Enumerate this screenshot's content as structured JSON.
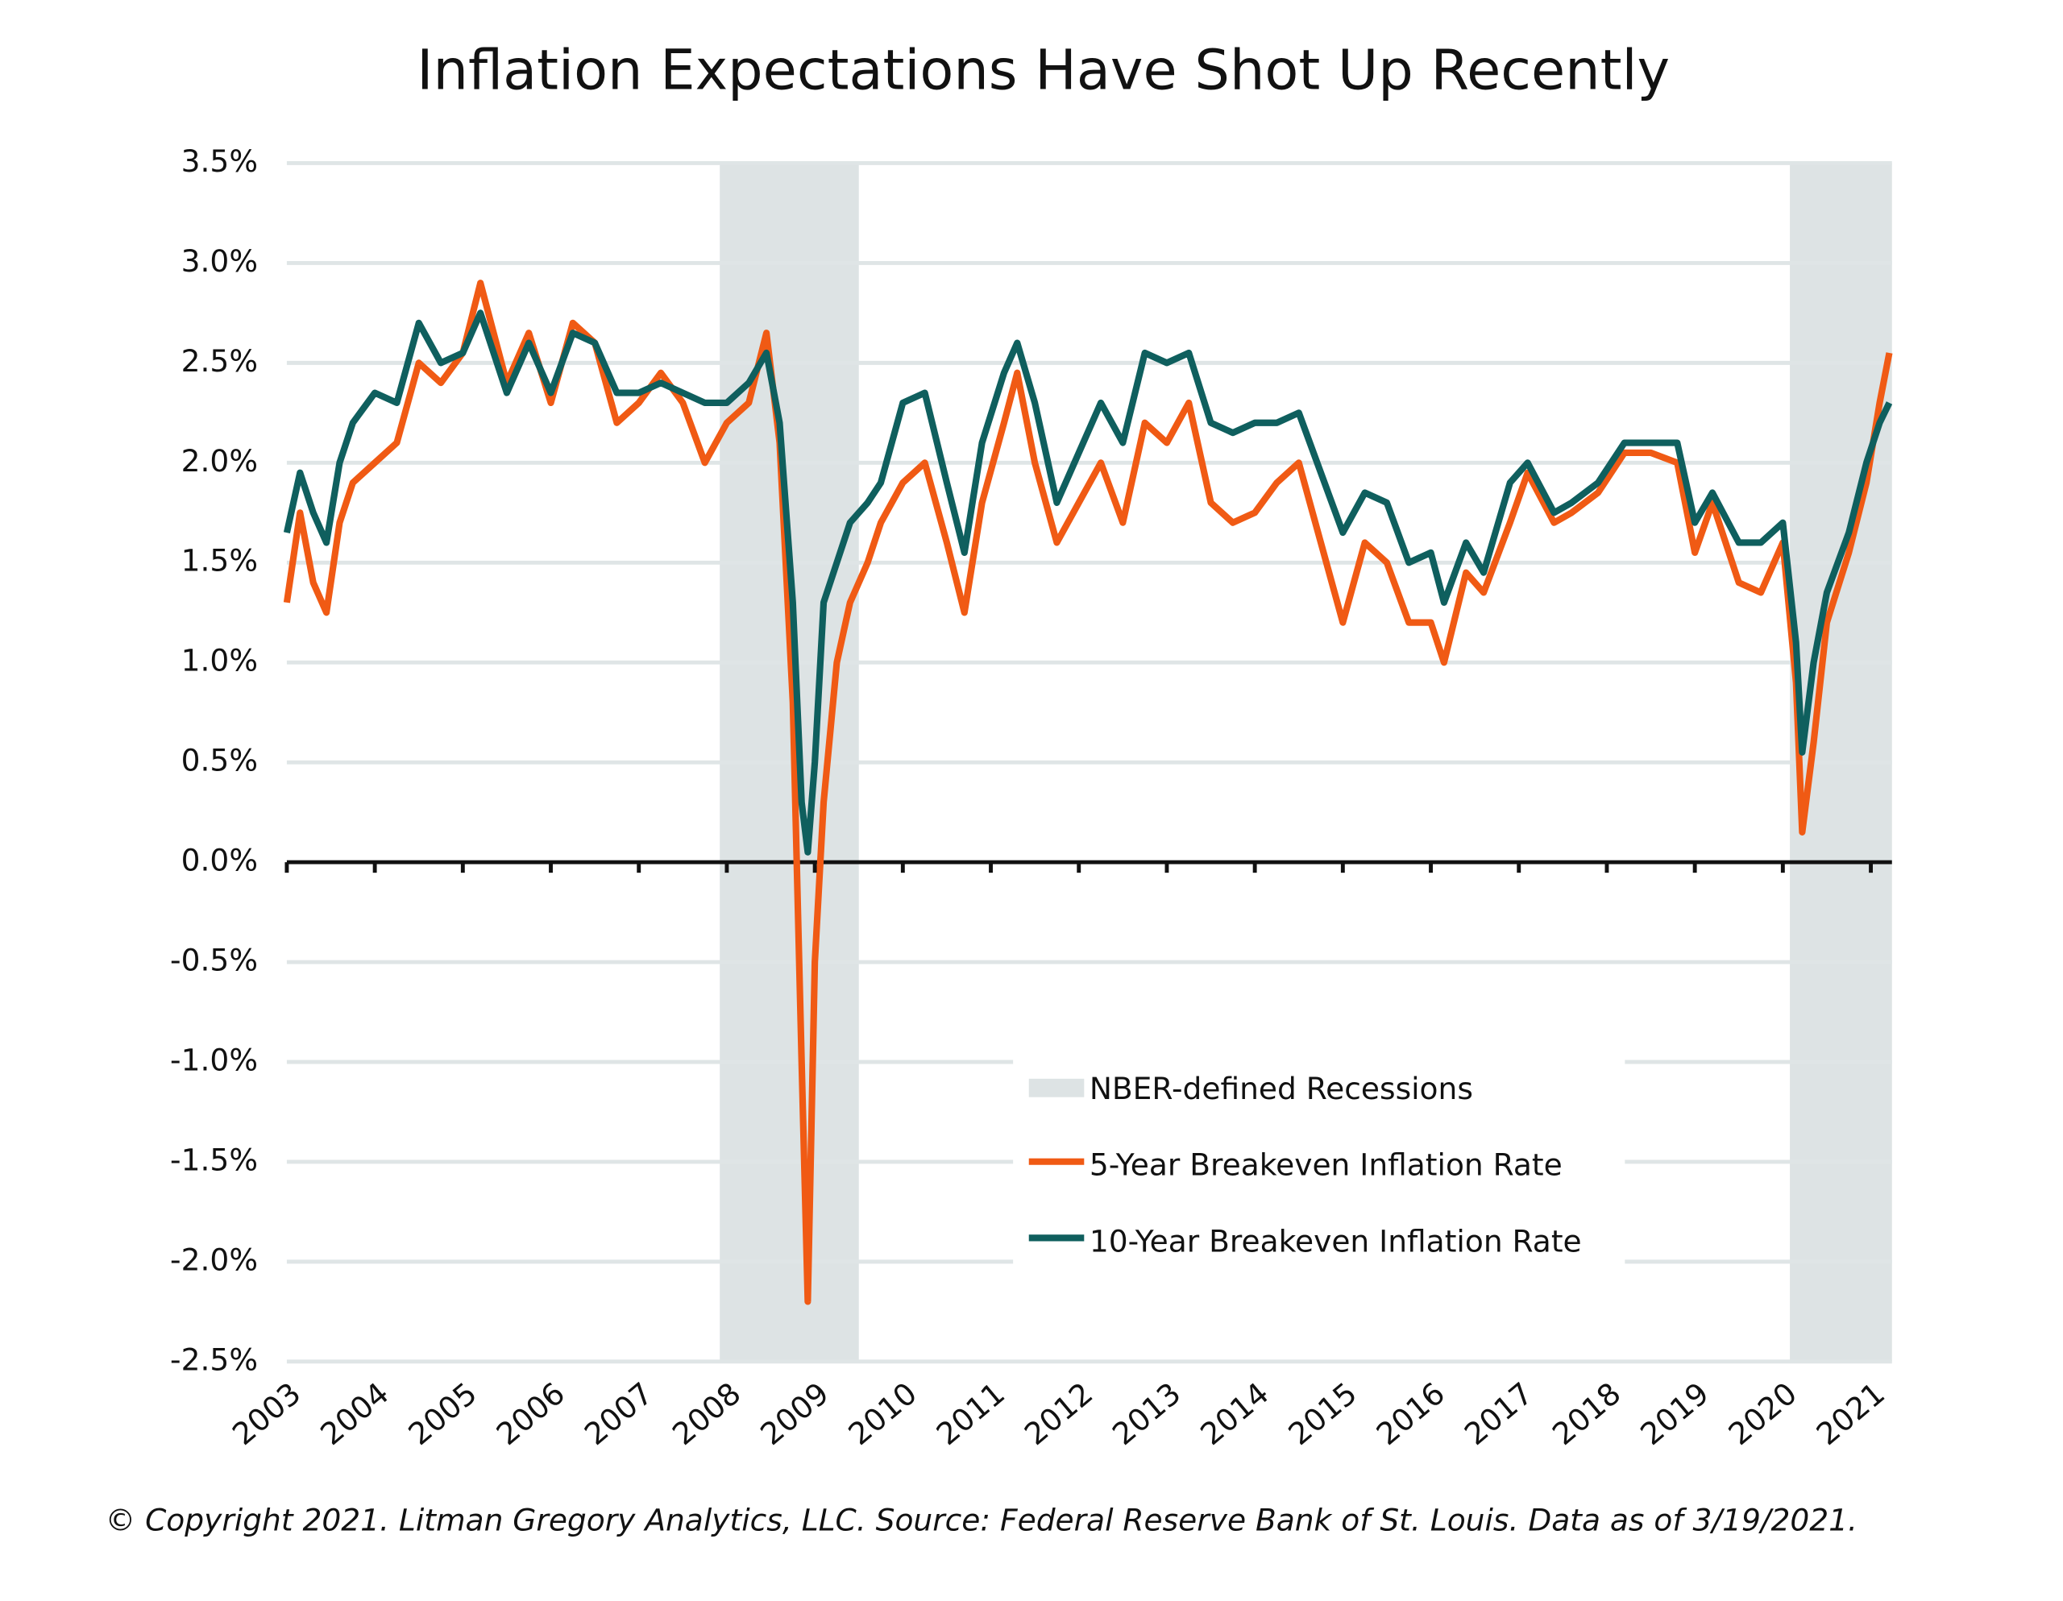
{
  "chart_data": {
    "type": "line",
    "title": "Inflation Expectations Have Shot Up Recently",
    "footnote": "© Copyright 2021. Litman Gregory Analytics, LLC. Source: Federal Reserve Bank of St. Louis. Data as of 3/19/2021.",
    "recession_label": "NBER-defined Recessions",
    "recession_color": "#dde3e4",
    "recessions": [
      [
        2007.92,
        2009.5
      ],
      [
        2020.08,
        2021.24
      ]
    ],
    "x": [
      2003.0,
      2003.15,
      2003.3,
      2003.45,
      2003.6,
      2003.75,
      2004.0,
      2004.25,
      2004.5,
      2004.75,
      2005.0,
      2005.2,
      2005.5,
      2005.75,
      2006.0,
      2006.25,
      2006.5,
      2006.75,
      2007.0,
      2007.25,
      2007.5,
      2007.75,
      2008.0,
      2008.25,
      2008.45,
      2008.6,
      2008.75,
      2008.85,
      2008.92,
      2009.0,
      2009.1,
      2009.25,
      2009.4,
      2009.6,
      2009.75,
      2010.0,
      2010.25,
      2010.5,
      2010.7,
      2010.9,
      2011.15,
      2011.3,
      2011.5,
      2011.75,
      2012.0,
      2012.25,
      2012.5,
      2012.75,
      2013.0,
      2013.25,
      2013.5,
      2013.75,
      2014.0,
      2014.25,
      2014.5,
      2014.75,
      2015.0,
      2015.25,
      2015.5,
      2015.75,
      2016.0,
      2016.15,
      2016.4,
      2016.6,
      2016.9,
      2017.1,
      2017.4,
      2017.6,
      2017.9,
      2018.2,
      2018.5,
      2018.8,
      2019.0,
      2019.2,
      2019.5,
      2019.75,
      2020.0,
      2020.15,
      2020.22,
      2020.35,
      2020.5,
      2020.75,
      2020.95,
      2021.1,
      2021.21
    ],
    "series": [
      {
        "name": "5-Year Breakeven Inflation Rate",
        "color": "#f05a14",
        "values": [
          1.3,
          1.75,
          1.4,
          1.25,
          1.7,
          1.9,
          2.0,
          2.1,
          2.5,
          2.4,
          2.55,
          2.9,
          2.4,
          2.65,
          2.3,
          2.7,
          2.6,
          2.2,
          2.3,
          2.45,
          2.3,
          2.0,
          2.2,
          2.3,
          2.65,
          2.1,
          0.8,
          -1.0,
          -2.2,
          -0.5,
          0.3,
          1.0,
          1.3,
          1.5,
          1.7,
          1.9,
          2.0,
          1.6,
          1.25,
          1.8,
          2.2,
          2.45,
          2.0,
          1.6,
          1.8,
          2.0,
          1.7,
          2.2,
          2.1,
          2.3,
          1.8,
          1.7,
          1.75,
          1.9,
          2.0,
          1.6,
          1.2,
          1.6,
          1.5,
          1.2,
          1.2,
          1.0,
          1.45,
          1.35,
          1.7,
          1.95,
          1.7,
          1.75,
          1.85,
          2.05,
          2.05,
          2.0,
          1.55,
          1.8,
          1.4,
          1.35,
          1.6,
          0.9,
          0.15,
          0.6,
          1.2,
          1.55,
          1.9,
          2.3,
          2.55
        ]
      },
      {
        "name": "10-Year Breakeven Inflation Rate",
        "color": "#0f5f5e",
        "values": [
          1.65,
          1.95,
          1.75,
          1.6,
          2.0,
          2.2,
          2.35,
          2.3,
          2.7,
          2.5,
          2.55,
          2.75,
          2.35,
          2.6,
          2.35,
          2.65,
          2.6,
          2.35,
          2.35,
          2.4,
          2.35,
          2.3,
          2.3,
          2.4,
          2.55,
          2.2,
          1.3,
          0.3,
          0.05,
          0.5,
          1.3,
          1.5,
          1.7,
          1.8,
          1.9,
          2.3,
          2.35,
          1.9,
          1.55,
          2.1,
          2.45,
          2.6,
          2.3,
          1.8,
          2.05,
          2.3,
          2.1,
          2.55,
          2.5,
          2.55,
          2.2,
          2.15,
          2.2,
          2.2,
          2.25,
          1.95,
          1.65,
          1.85,
          1.8,
          1.5,
          1.55,
          1.3,
          1.6,
          1.45,
          1.9,
          2.0,
          1.75,
          1.8,
          1.9,
          2.1,
          2.1,
          2.1,
          1.7,
          1.85,
          1.6,
          1.6,
          1.7,
          1.1,
          0.55,
          1.0,
          1.35,
          1.65,
          2.0,
          2.2,
          2.3
        ]
      }
    ],
    "xlim": [
      2003,
      2021.24
    ],
    "xticks": [
      2003,
      2004,
      2005,
      2006,
      2007,
      2008,
      2009,
      2010,
      2011,
      2012,
      2013,
      2014,
      2015,
      2016,
      2017,
      2018,
      2019,
      2020,
      2021
    ],
    "ylim": [
      -2.5,
      3.5
    ],
    "yticks": [
      {
        "value": 3.5,
        "label": "3.5%"
      },
      {
        "value": 3.0,
        "label": "3.0%"
      },
      {
        "value": 2.5,
        "label": "2.5%"
      },
      {
        "value": 2.0,
        "label": "2.0%"
      },
      {
        "value": 1.5,
        "label": "1.5%"
      },
      {
        "value": 1.0,
        "label": "1.0%"
      },
      {
        "value": 0.5,
        "label": "0.5%"
      },
      {
        "value": 0.0,
        "label": "0.0%"
      },
      {
        "value": -0.5,
        "label": "-0.5%"
      },
      {
        "value": -1.0,
        "label": "-1.0%"
      },
      {
        "value": -1.5,
        "label": "-1.5%"
      },
      {
        "value": -2.0,
        "label": "-2.0%"
      },
      {
        "value": -2.5,
        "label": "-2.5%"
      }
    ],
    "grid": true,
    "grid_color": "#dfe5e6"
  }
}
